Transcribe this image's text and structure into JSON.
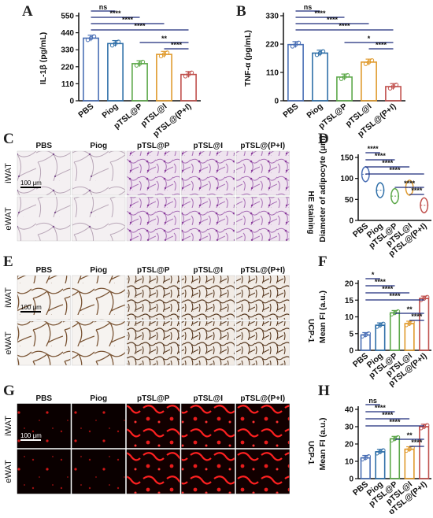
{
  "figure": {
    "panel_labels": [
      "A",
      "B",
      "C",
      "D",
      "E",
      "F",
      "G",
      "H"
    ],
    "groups": [
      "PBS",
      "Piog",
      "pTSL@P",
      "pTSL@I",
      "pTSL@(P+I)"
    ],
    "micro_groups": [
      "PBS",
      "Piog",
      "pTSL@P",
      "pTSL@I",
      "pTSL@(P+I)"
    ],
    "rows": [
      "iWAT",
      "eWAT"
    ],
    "scale_bar": "100 μm",
    "he_stain": "HE staining",
    "ucp_stain": "UCP-1",
    "colors": {
      "PBS": "#4a6fb5",
      "Piog": "#2f6fa8",
      "pTSL@P": "#5da84a",
      "pTSL@I": "#e09a2c",
      "pTSL@(P+I)": "#c0504d"
    }
  },
  "chart_data": [
    {
      "panel": "A",
      "type": "bar",
      "ylabel": "IL-1β (pg/mL)",
      "yticks": [
        "0",
        "110",
        "220",
        "330",
        "440",
        "550"
      ],
      "ylim": [
        0,
        550
      ],
      "categories": [
        "PBS",
        "Piog",
        "pTSL@P",
        "pTSL@I",
        "pTSL@(P+I)"
      ],
      "values": [
        405,
        370,
        240,
        300,
        170
      ],
      "comparisons": [
        {
          "label": "ns",
          "from": 0,
          "to": 1
        },
        {
          "label": "****",
          "from": 0,
          "to": 2
        },
        {
          "label": "****",
          "from": 0,
          "to": 3
        },
        {
          "label": "****",
          "from": 0,
          "to": 4
        },
        {
          "label": "**",
          "from": 2,
          "to": 4
        },
        {
          "label": "****",
          "from": 3,
          "to": 4
        }
      ]
    },
    {
      "panel": "B",
      "type": "bar",
      "ylabel": "TNF-α (pg/mL)",
      "yticks": [
        "0",
        "110",
        "220",
        "330"
      ],
      "ylim": [
        0,
        330
      ],
      "categories": [
        "PBS",
        "Piog",
        "pTSL@P",
        "pTSL@I",
        "pTSL@(P+I)"
      ],
      "values": [
        218,
        185,
        92,
        150,
        55
      ],
      "comparisons": [
        {
          "label": "ns",
          "from": 0,
          "to": 1
        },
        {
          "label": "****",
          "from": 0,
          "to": 2
        },
        {
          "label": "****",
          "from": 0,
          "to": 3
        },
        {
          "label": "****",
          "from": 0,
          "to": 4
        },
        {
          "label": "*",
          "from": 2,
          "to": 4
        },
        {
          "label": "****",
          "from": 3,
          "to": 4
        }
      ]
    },
    {
      "panel": "D",
      "type": "violin",
      "ylabel": "Diameter of adipocyte (μm)",
      "yticks": [
        "0",
        "50",
        "100",
        "150"
      ],
      "ylim": [
        0,
        150
      ],
      "categories": [
        "PBS",
        "Piog",
        "pTSL@P",
        "pTSL@I",
        "pTSL@(P+I)"
      ],
      "values": [
        110,
        72,
        58,
        78,
        36
      ],
      "comparisons": [
        {
          "label": "****",
          "from": 0,
          "to": 1
        },
        {
          "label": "****",
          "from": 0,
          "to": 2
        },
        {
          "label": "****",
          "from": 0,
          "to": 3
        },
        {
          "label": "****",
          "from": 0,
          "to": 4
        },
        {
          "label": "****",
          "from": 2,
          "to": 4
        },
        {
          "label": "****",
          "from": 3,
          "to": 4
        }
      ]
    },
    {
      "panel": "F",
      "type": "bar",
      "ylabel": "Mean FI (a.u.)",
      "yticks": [
        "0",
        "5",
        "10",
        "15",
        "20"
      ],
      "ylim": [
        0,
        20
      ],
      "categories": [
        "PBS",
        "Piog",
        "pTSL@P",
        "pTSL@I",
        "pTSL@(P+I)"
      ],
      "values": [
        4.6,
        7.5,
        11.2,
        8.0,
        15.5
      ],
      "comparisons": [
        {
          "label": "*",
          "from": 0,
          "to": 1
        },
        {
          "label": "****",
          "from": 0,
          "to": 2
        },
        {
          "label": "****",
          "from": 0,
          "to": 3
        },
        {
          "label": "****",
          "from": 0,
          "to": 4
        },
        {
          "label": "**",
          "from": 2,
          "to": 4
        },
        {
          "label": "****",
          "from": 3,
          "to": 4
        }
      ]
    },
    {
      "panel": "H",
      "type": "bar",
      "ylabel": "Mean FI (a.u.)",
      "yticks": [
        "0",
        "10",
        "20",
        "30",
        "40"
      ],
      "ylim": [
        0,
        40
      ],
      "categories": [
        "PBS",
        "Piog",
        "pTSL@P",
        "pTSL@I",
        "pTSL@(P+I)"
      ],
      "values": [
        12,
        15.5,
        23,
        17,
        30
      ],
      "comparisons": [
        {
          "label": "ns",
          "from": 0,
          "to": 1
        },
        {
          "label": "****",
          "from": 0,
          "to": 2
        },
        {
          "label": "****",
          "from": 0,
          "to": 3
        },
        {
          "label": "****",
          "from": 0,
          "to": 4
        },
        {
          "label": "**",
          "from": 2,
          "to": 4
        },
        {
          "label": "****",
          "from": 3,
          "to": 4
        }
      ]
    }
  ]
}
